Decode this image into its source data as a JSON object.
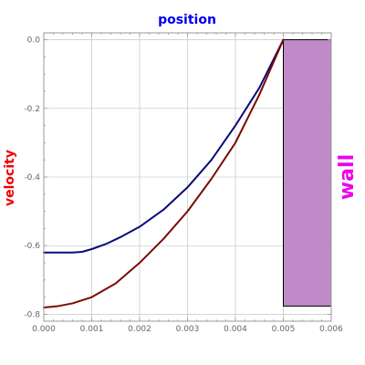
{
  "chart_data": {
    "type": "line",
    "title": "position",
    "xlabel": "",
    "ylabel": "velocity",
    "right_label": "wall",
    "xlim": [
      0.0,
      0.006
    ],
    "ylim": [
      -0.82,
      0.02
    ],
    "x_ticks": [
      0.0,
      0.001,
      0.002,
      0.003,
      0.004,
      0.005,
      0.006
    ],
    "x_tick_labels": [
      "0.000",
      "0.001",
      "0.002",
      "0.003",
      "0.004",
      "0.005",
      "0.006"
    ],
    "y_ticks": [
      0.0,
      -0.2,
      -0.4,
      -0.6,
      -0.8
    ],
    "y_tick_labels": [
      "0.0",
      "-0.2",
      "-0.4",
      "-0.6",
      "-0.8"
    ],
    "grid": true,
    "colors": {
      "title": "#0000ee",
      "ylabel": "#ee0000",
      "right_label": "#ee00ee",
      "wall_fill": "#bf8ac7",
      "grid": "#bbbbbb",
      "axis": "#999999"
    },
    "wall": {
      "x": [
        0.005,
        0.006
      ],
      "y": [
        -0.776,
        0.0
      ]
    },
    "series": [
      {
        "color": "#0a0a78",
        "x": [
          0.0,
          0.0006,
          0.0008,
          0.001,
          0.0013,
          0.0016,
          0.002,
          0.0025,
          0.003,
          0.0035,
          0.004,
          0.0045,
          0.005
        ],
        "y": [
          -0.62,
          -0.62,
          -0.618,
          -0.61,
          -0.595,
          -0.575,
          -0.545,
          -0.495,
          -0.43,
          -0.35,
          -0.25,
          -0.14,
          0.0
        ]
      },
      {
        "color": "#7a0a00",
        "x": [
          0.0,
          0.0003,
          0.0006,
          0.001,
          0.0015,
          0.002,
          0.0025,
          0.003,
          0.0035,
          0.004,
          0.0045,
          0.005
        ],
        "y": [
          -0.78,
          -0.776,
          -0.768,
          -0.75,
          -0.71,
          -0.65,
          -0.58,
          -0.5,
          -0.405,
          -0.3,
          -0.16,
          0.0
        ]
      }
    ]
  }
}
